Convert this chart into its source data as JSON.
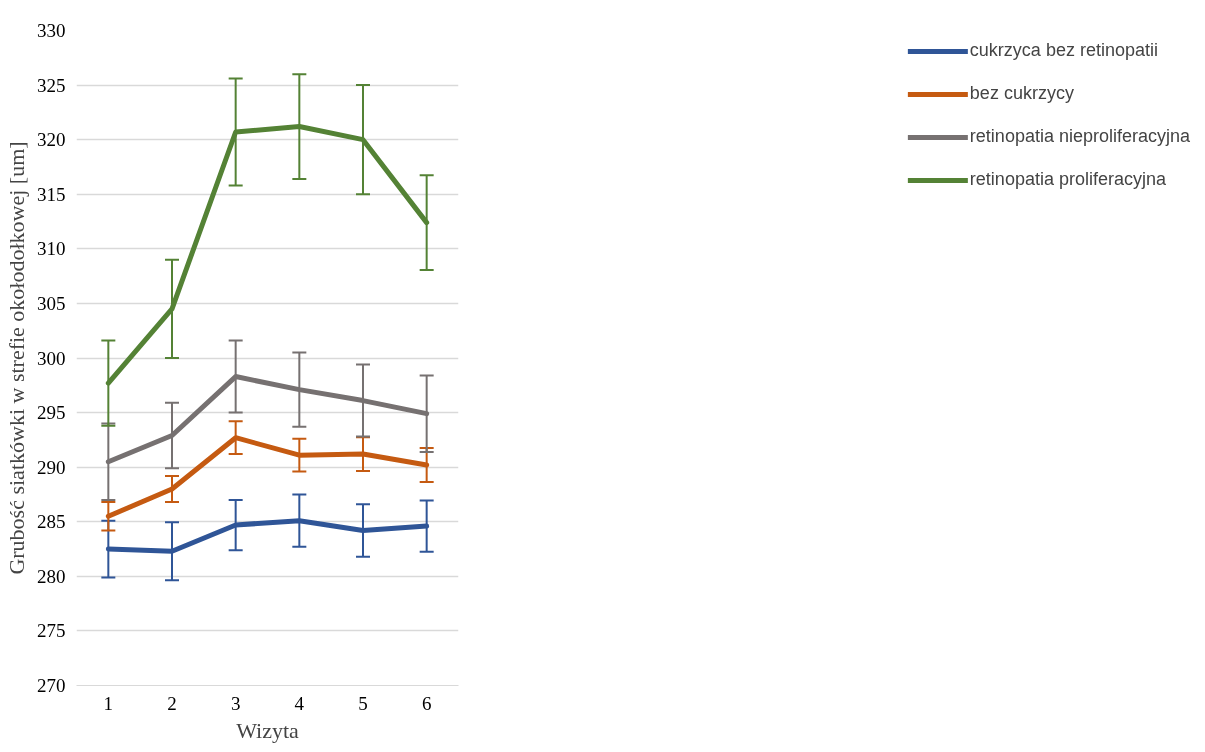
{
  "chart_data": {
    "type": "line",
    "xlabel": "Wizyta",
    "ylabel": "Grubość siatkówki w strefie okołodołkowej [um]",
    "categories": [
      "1",
      "2",
      "3",
      "4",
      "5",
      "6"
    ],
    "series": [
      {
        "name": "cukrzyca bez retinopatii",
        "color": "#2f5597",
        "values": [
          282.5,
          282.3,
          284.7,
          285.1,
          284.2,
          284.6
        ],
        "errors": [
          2.6,
          2.65,
          2.3,
          2.4,
          2.4,
          2.35
        ]
      },
      {
        "name": "bez cukrzycy",
        "color": "#c55a11",
        "values": [
          285.5,
          288.0,
          292.7,
          291.1,
          291.2,
          290.2
        ],
        "errors": [
          1.3,
          1.2,
          1.5,
          1.5,
          1.55,
          1.55
        ]
      },
      {
        "name": "retinopatia nieproliferacyjna",
        "color": "#767171",
        "values": [
          290.5,
          292.9,
          298.3,
          297.1,
          296.1,
          294.9
        ],
        "errors": [
          3.5,
          3.0,
          3.3,
          3.4,
          3.3,
          3.5
        ]
      },
      {
        "name": "retinopatia proliferacyjna",
        "color": "#548235",
        "values": [
          297.7,
          304.5,
          320.7,
          321.2,
          320.0,
          312.4
        ],
        "errors": [
          3.9,
          4.5,
          4.9,
          4.8,
          5.0,
          4.35
        ]
      }
    ],
    "ylim": [
      270,
      330
    ],
    "yticks": [
      270,
      275,
      280,
      285,
      290,
      295,
      300,
      305,
      310,
      315,
      320,
      325,
      330
    ],
    "grid": "y",
    "legend": "right",
    "marker": "none",
    "line_style": "solid"
  }
}
